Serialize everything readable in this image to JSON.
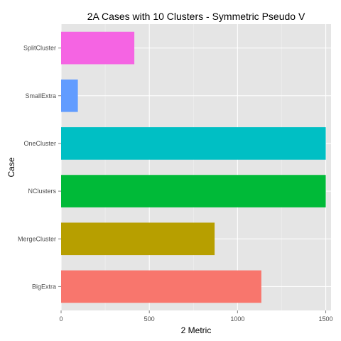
{
  "chart_data": {
    "type": "bar",
    "orientation": "horizontal",
    "title": "2A Cases with 10 Clusters - Symmetric Pseudo V",
    "xlabel": "2 Metric",
    "ylabel": "Case",
    "xlim": [
      0,
      1530
    ],
    "xticks": [
      0,
      500,
      1000,
      1500
    ],
    "grid": true,
    "legend": "none",
    "categories": [
      "BigExtra",
      "MergeCluster",
      "NClusters",
      "OneCluster",
      "SmallExtra",
      "SplitCluster"
    ],
    "values": [
      1135,
      870,
      1500,
      1500,
      95,
      415
    ],
    "colors": [
      "#F8766D",
      "#B79F00",
      "#00BA38",
      "#00BFC4",
      "#619CFF",
      "#F564E3"
    ]
  }
}
